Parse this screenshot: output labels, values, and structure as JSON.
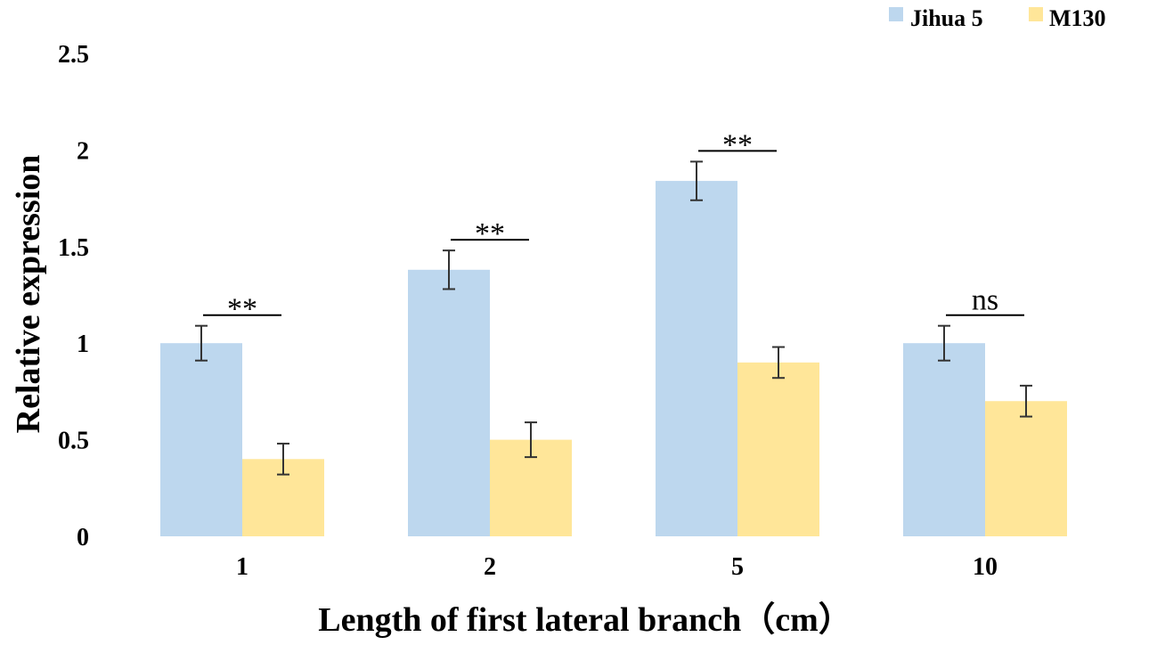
{
  "chart_data": {
    "type": "bar",
    "xlabel": "Length of first lateral branch（cm）",
    "ylabel": "Relative expression",
    "ylim": [
      0,
      2.5
    ],
    "yticks": [
      "0",
      "0.5",
      "1",
      "1.5",
      "2",
      "2.5"
    ],
    "categories": [
      "1",
      "2",
      "5",
      "10"
    ],
    "series": [
      {
        "name": "Jihua 5",
        "color": "#bdd7ee",
        "values": [
          1.0,
          1.38,
          1.84,
          1.0
        ],
        "errors": [
          0.09,
          0.1,
          0.1,
          0.09
        ]
      },
      {
        "name": "M130",
        "color": "#ffe699",
        "values": [
          0.4,
          0.5,
          0.9,
          0.7
        ],
        "errors": [
          0.08,
          0.09,
          0.08,
          0.08
        ]
      }
    ],
    "significance": [
      "**",
      "**",
      "**",
      "ns"
    ],
    "legend_position": "top-right",
    "grid": false
  }
}
